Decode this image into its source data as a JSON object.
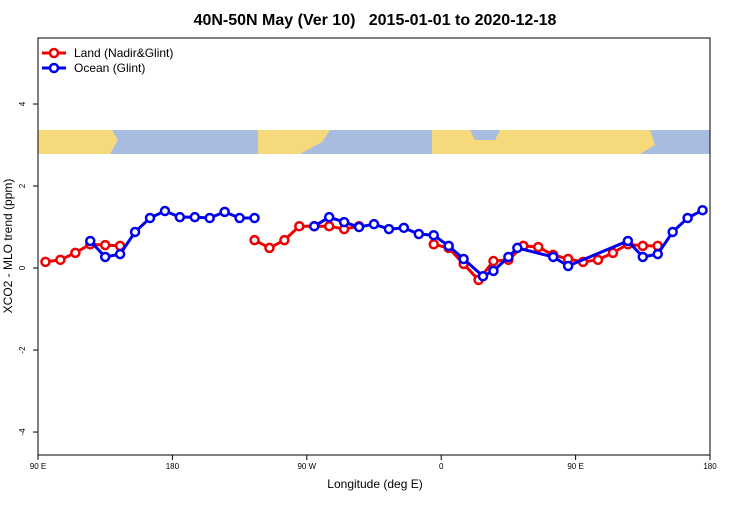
{
  "chart_data": {
    "type": "line",
    "title": "40N-50N May (Ver 10)   2015-01-01 to 2020-12-18",
    "xlabel": "Longitude (deg E)",
    "ylabel": "XCO2 - MLO trend (ppm)",
    "xlim": [
      90,
      540
    ],
    "ylim": [
      -4.56,
      5.61
    ],
    "xticks": [
      {
        "value": 90,
        "label": "90 E"
      },
      180,
      {
        "value": 270,
        "label": "90 W"
      },
      {
        "value": 360,
        "label": "0"
      },
      {
        "value": 450,
        "label": "90 E"
      },
      {
        "value": 540,
        "label": "180"
      }
    ],
    "yticks": [
      -4,
      -2,
      0,
      2,
      4
    ],
    "legend": "top-left",
    "series": [
      {
        "name": "Land (Nadir&Glint)",
        "color": "#ee0000",
        "x": [
          95,
          105,
          115,
          125,
          135,
          145,
          190,
          235,
          245,
          255,
          265,
          275,
          285,
          295,
          305,
          330,
          355,
          365,
          375,
          385,
          395,
          405,
          415,
          425,
          435,
          445,
          455,
          465,
          475,
          485,
          495,
          505
        ],
        "values": [
          0.15,
          0.2,
          0.37,
          0.58,
          0.56,
          0.54,
          null,
          0.68,
          0.49,
          0.68,
          1.02,
          1.02,
          1.02,
          0.95,
          1.02,
          null,
          0.58,
          0.49,
          0.1,
          -0.29,
          0.17,
          0.2,
          0.54,
          0.51,
          0.32,
          0.22,
          0.15,
          0.2,
          0.37,
          0.58,
          0.54,
          0.54
        ]
      },
      {
        "name": "Ocean (Glint)",
        "color": "#0000ee",
        "x": [
          125,
          135,
          145,
          155,
          165,
          175,
          185,
          195,
          205,
          215,
          225,
          235,
          255,
          275,
          285,
          295,
          305,
          315,
          325,
          335,
          345,
          355,
          365,
          375,
          388,
          395,
          405,
          411,
          435,
          445,
          485,
          495,
          505,
          515,
          525,
          535
        ],
        "values": [
          0.66,
          0.27,
          0.34,
          0.88,
          1.22,
          1.39,
          1.24,
          1.24,
          1.22,
          1.37,
          1.22,
          1.22,
          null,
          1.02,
          1.24,
          1.12,
          1.0,
          1.07,
          0.95,
          0.98,
          0.83,
          0.8,
          0.54,
          0.22,
          -0.2,
          -0.07,
          0.27,
          0.49,
          0.27,
          0.05,
          0.66,
          0.27,
          0.34,
          0.88,
          1.22,
          1.41
        ]
      }
    ]
  }
}
